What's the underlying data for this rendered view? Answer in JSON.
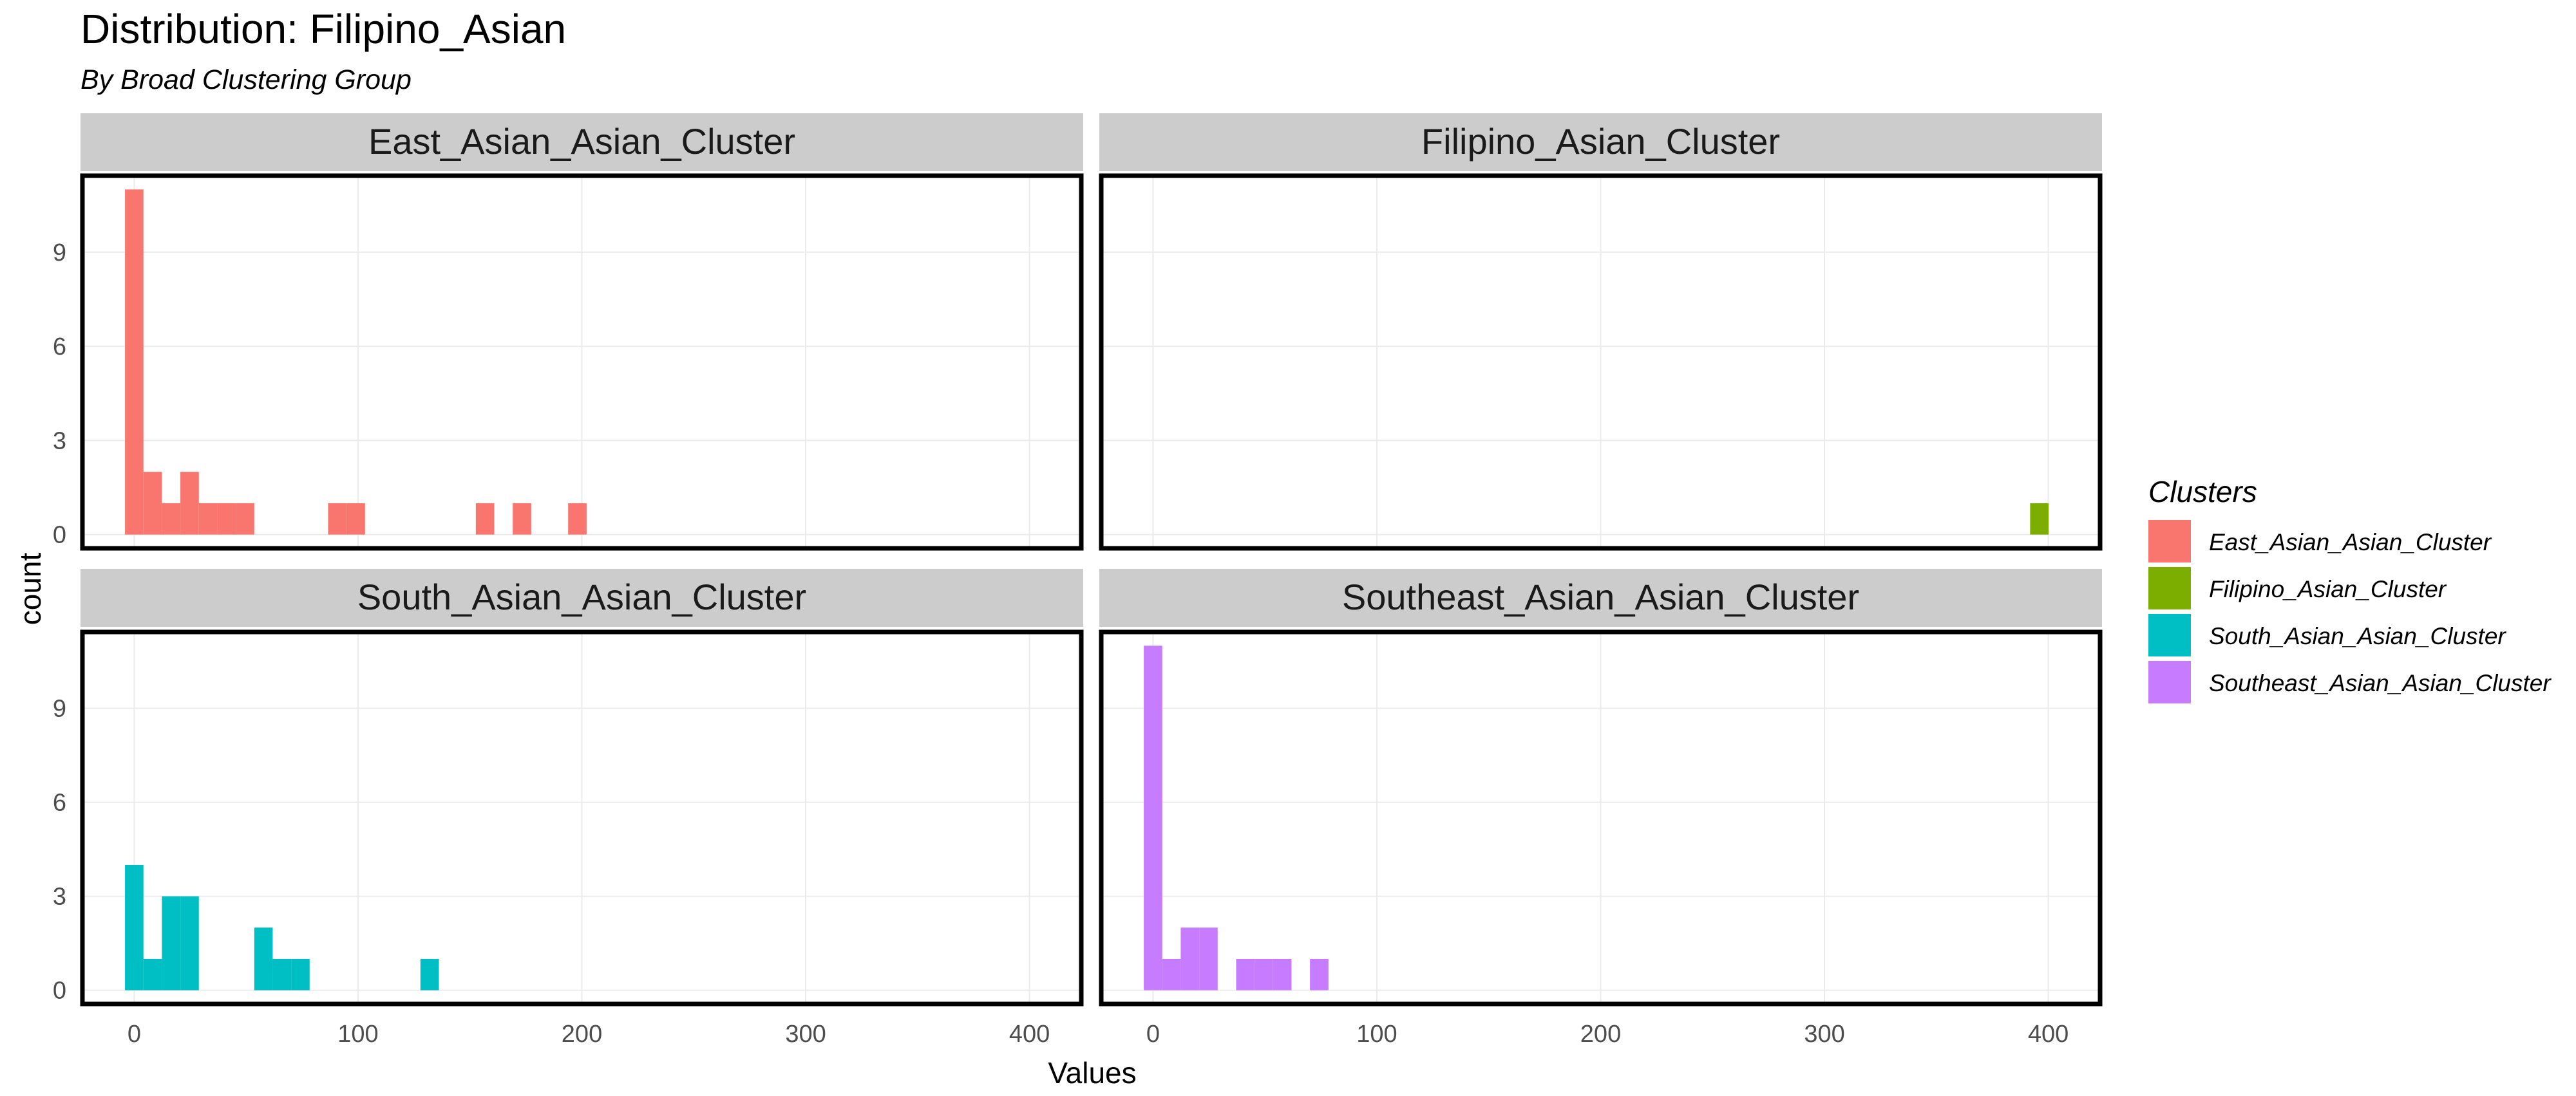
{
  "title": "Distribution: Filipino_Asian",
  "subtitle": "By Broad Clustering Group",
  "chart_data": {
    "type": "histogram",
    "xlabel": "Values",
    "ylabel": "count",
    "xlim": [
      -24,
      424
    ],
    "ylim": [
      -0.5,
      11.5
    ],
    "x_ticks": [
      0,
      100,
      200,
      300,
      400
    ],
    "y_ticks": [
      0,
      3,
      6,
      9
    ],
    "bin_width": 8.25,
    "grid": true,
    "legend": {
      "title": "Clusters",
      "position": "right",
      "entries": [
        {
          "label": "East_Asian_Asian_Cluster",
          "color": "#F8766D"
        },
        {
          "label": "Filipino_Asian_Cluster",
          "color": "#7CAE00"
        },
        {
          "label": "South_Asian_Asian_Cluster",
          "color": "#00BFC4"
        },
        {
          "label": "Southeast_Asian_Asian_Cluster",
          "color": "#C77CFF"
        }
      ]
    },
    "panels": [
      {
        "name": "East_Asian_Asian_Cluster",
        "color": "#F8766D",
        "bins": [
          {
            "x": 0,
            "count": 11
          },
          {
            "x": 8.25,
            "count": 2
          },
          {
            "x": 16.5,
            "count": 1
          },
          {
            "x": 24.75,
            "count": 2
          },
          {
            "x": 33,
            "count": 1
          },
          {
            "x": 41.25,
            "count": 1
          },
          {
            "x": 49.5,
            "count": 1
          },
          {
            "x": 90.75,
            "count": 1
          },
          {
            "x": 99,
            "count": 1
          },
          {
            "x": 156.75,
            "count": 1
          },
          {
            "x": 173.25,
            "count": 1
          },
          {
            "x": 198,
            "count": 1
          }
        ]
      },
      {
        "name": "Filipino_Asian_Cluster",
        "color": "#7CAE00",
        "bins": [
          {
            "x": 396,
            "count": 1
          }
        ]
      },
      {
        "name": "South_Asian_Asian_Cluster",
        "color": "#00BFC4",
        "bins": [
          {
            "x": 0,
            "count": 4
          },
          {
            "x": 8.25,
            "count": 1
          },
          {
            "x": 16.5,
            "count": 3
          },
          {
            "x": 24.75,
            "count": 3
          },
          {
            "x": 57.75,
            "count": 2
          },
          {
            "x": 66,
            "count": 1
          },
          {
            "x": 74.25,
            "count": 1
          },
          {
            "x": 132,
            "count": 1
          }
        ]
      },
      {
        "name": "Southeast_Asian_Asian_Cluster",
        "color": "#C77CFF",
        "bins": [
          {
            "x": 0,
            "count": 11
          },
          {
            "x": 8.25,
            "count": 1
          },
          {
            "x": 16.5,
            "count": 2
          },
          {
            "x": 24.75,
            "count": 2
          },
          {
            "x": 41.25,
            "count": 1
          },
          {
            "x": 49.5,
            "count": 1
          },
          {
            "x": 57.75,
            "count": 1
          },
          {
            "x": 74.25,
            "count": 1
          }
        ]
      }
    ]
  }
}
